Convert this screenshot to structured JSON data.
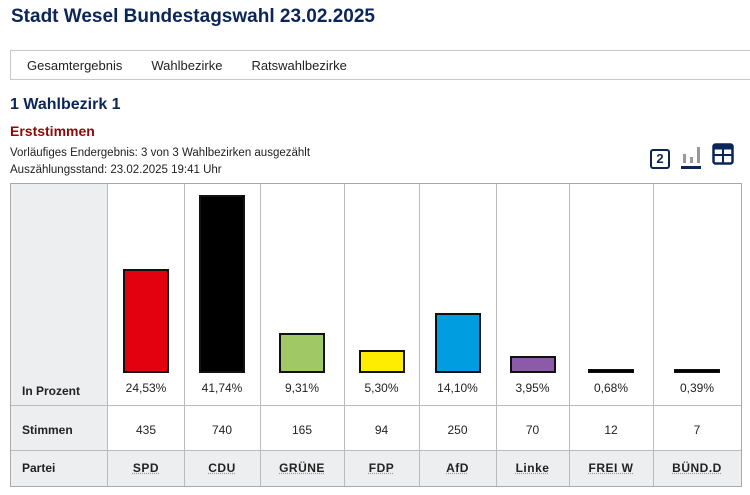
{
  "title": "Stadt Wesel Bundestagswahl 23.02.2025",
  "nav": [
    "Gesamtergebnis",
    "Wahlbezirke",
    "Ratswahlbezirke"
  ],
  "district": "1 Wahlbezirk 1",
  "section": "Erststimmen",
  "status": "Vorläufiges Endergebnis: 3 von 3 Wahlbezirken ausgezählt",
  "timestamp": "Auszählungsstand: 23.02.2025 19:41 Uhr",
  "icons": {
    "number": "2",
    "chart": "bar-chart-icon",
    "table": "table-icon"
  },
  "row_labels": {
    "percent": "In Prozent",
    "votes": "Stimmen",
    "party": "Partei"
  },
  "chart_data": {
    "type": "bar",
    "categories": [
      "SPD",
      "CDU",
      "GRÜNE",
      "FDP",
      "AfD",
      "Linke",
      "FREI W",
      "BÜND.D"
    ],
    "values": [
      24.53,
      41.74,
      9.31,
      5.3,
      14.1,
      3.95,
      0.68,
      0.39
    ],
    "labels": [
      "24,53%",
      "41,74%",
      "9,31%",
      "5,30%",
      "14,10%",
      "3,95%",
      "0,68%",
      "0,39%"
    ],
    "votes": [
      "435",
      "740",
      "165",
      "94",
      "250",
      "70",
      "12",
      "7"
    ],
    "colors": [
      "#e3000f",
      "#000000",
      "#a0c864",
      "#ffed00",
      "#009ee0",
      "#8c5aa8",
      "#000000",
      "#000000"
    ]
  }
}
